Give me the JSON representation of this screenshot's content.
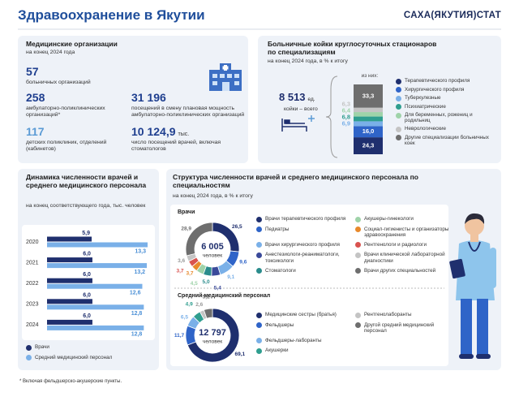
{
  "header": {
    "title": "Здравоохранение в Якутии",
    "brand": "САХА(ЯКУТИЯ)СТАТ"
  },
  "orgs": {
    "title": "Медицинские организации",
    "subtitle": "на конец 2024 года",
    "items": [
      {
        "value": "57",
        "label": "больничных организаций"
      },
      {
        "value": "258",
        "label": "амбулаторно-поликлинических организаций*"
      },
      {
        "value": "117",
        "label": "детских поликлиник, отделений (кабинетов)"
      },
      {
        "value": "31 196",
        "label": "посещений в смену плановая мощность амбулаторно-поликлинических организаций"
      },
      {
        "value": "10 124,9",
        "unit": "тыс.",
        "label": "число посещений врачей, включая стоматологов"
      }
    ]
  },
  "footnote": "* Включая фельдшерско-акушерские пункты.",
  "chart_data": [
    {
      "type": "stacked_bar",
      "title": "Больничные койки круглосуточных стационаров по специализациям",
      "subtitle": "на конец 2024 года, в % к итогу",
      "total": "8 513",
      "total_unit": "ед.",
      "total_label": "койки – всего",
      "subset_label": "из них:",
      "categories": [
        "Терапевтического профиля",
        "Хирургического профиля",
        "Туберкулезные",
        "Психиатрические",
        "Для беременных, рожениц и родильниц",
        "Неврологические",
        "Другие специализации больничных коек"
      ],
      "values": [
        24.3,
        16.0,
        6.9,
        6.8,
        6.4,
        6.3,
        33.3
      ],
      "value_labels": [
        "24,3",
        "16,0",
        "6,9",
        "6,8",
        "6,4",
        "6,3",
        "33,3"
      ],
      "colors": [
        "#1f2f6e",
        "#2f64c8",
        "#7ab0e8",
        "#2f9e8f",
        "#9fd3a9",
        "#c4c4c4",
        "#6e6e6e"
      ]
    },
    {
      "type": "hbar",
      "title": "Динамика численности врачей и среднего медицинского персонала",
      "subtitle": "на конец соответствующего года, тыс. человек",
      "categories": [
        "2020",
        "2021",
        "2022",
        "2023",
        "2024"
      ],
      "series": [
        {
          "name": "Врачи",
          "color": "#1f2f6e",
          "values": [
            5.9,
            6.0,
            6.0,
            6.0,
            6.0
          ],
          "value_labels": [
            "5,9",
            "6,0",
            "6,0",
            "6,0",
            "6,0"
          ]
        },
        {
          "name": "Средний медицинский персонал",
          "color": "#7ab0e8",
          "values": [
            13.3,
            13.2,
            12.6,
            12.8,
            12.8
          ],
          "value_labels": [
            "13,3",
            "13,2",
            "12,6",
            "12,8",
            "12,8"
          ]
        }
      ]
    },
    {
      "type": "donut",
      "group_title": "Структура численности врачей и среднего медицинского персонала по специальностям",
      "group_subtitle": "на конец 2024 года, в % к итогу",
      "title": "Врачи",
      "center_value": "6 005",
      "center_label": "человек",
      "categories": [
        "Врачи терапевтического профиля",
        "Педиатры",
        "Врачи хирургического профиля",
        "Анестезиологи-реаниматологи, токсикологи",
        "Стоматологи",
        "Акушеры-гинекологи",
        "Социал-гигиенисты и организаторы здравоохранения",
        "Рентгенологи и радиологи",
        "Врачи клинической лабораторной диагностики",
        "Врачи других специальностей"
      ],
      "values": [
        26.5,
        9.6,
        9.1,
        5.4,
        5.0,
        4.5,
        3.7,
        3.7,
        3.6,
        28.9
      ],
      "value_labels": [
        "26,5",
        "9,6",
        "9,1",
        "5,4",
        "5,0",
        "4,5",
        "3,7",
        "3,7",
        "3,6",
        "28,9"
      ],
      "colors": [
        "#1f2f6e",
        "#2f64c8",
        "#7ab0e8",
        "#3a4a9a",
        "#2a8c8c",
        "#9fd3a9",
        "#e8892b",
        "#d9534f",
        "#c4c4c4",
        "#6e6e6e"
      ]
    },
    {
      "type": "donut",
      "title": "Средний медицинский персонал",
      "center_value": "12 797",
      "center_label": "человек",
      "categories": [
        "Медицинские сестры (братья)",
        "Фельдшеры",
        "Фельдшеры-лаборанты",
        "Акушерки",
        "Рентгенолаборанты",
        "Другой средний медицинский персонал"
      ],
      "values": [
        69.1,
        11.7,
        6.5,
        4.9,
        2.6,
        5.2
      ],
      "value_labels": [
        "69,1",
        "11,7",
        "6,5",
        "4,9",
        "2,6",
        "5,2"
      ],
      "colors": [
        "#1f2f6e",
        "#2f64c8",
        "#7ab0e8",
        "#2f9e8f",
        "#c4c4c4",
        "#6e6e6e"
      ]
    }
  ]
}
